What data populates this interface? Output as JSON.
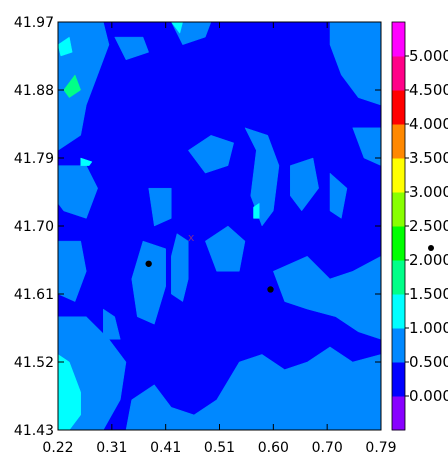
{
  "chart_data": {
    "type": "heatmap",
    "title": "",
    "xlabel": "",
    "ylabel": "",
    "xlim": [
      0.22,
      0.79
    ],
    "ylim": [
      41.43,
      41.97
    ],
    "x_ticks": [
      "0.22",
      "0.31",
      "0.41",
      "0.51",
      "0.60",
      "0.70",
      "0.79"
    ],
    "y_ticks": [
      "41.97",
      "41.88",
      "41.79",
      "41.70",
      "41.61",
      "41.52",
      "41.43"
    ],
    "grid": false,
    "background_color": "#0000ff",
    "colorbar": {
      "levels": [
        "0.000",
        "0.500",
        "1.000",
        "1.500",
        "2.000",
        "2.500",
        "3.000",
        "3.500",
        "4.000",
        "4.500",
        "5.000"
      ],
      "colors": [
        "#8800ff",
        "#0000ff",
        "#0088ff",
        "#00ffff",
        "#00ff88",
        "#00ff00",
        "#88ff00",
        "#ffff00",
        "#ff8800",
        "#ff0000",
        "#ff0088",
        "#ff00ff"
      ]
    },
    "regions": [
      {
        "level": 1.0,
        "color": "#0088ff",
        "polygon": [
          [
            0.22,
            41.97
          ],
          [
            0.3,
            41.97
          ],
          [
            0.31,
            41.94
          ],
          [
            0.29,
            41.9
          ],
          [
            0.27,
            41.86
          ],
          [
            0.26,
            41.82
          ],
          [
            0.22,
            41.8
          ]
        ]
      },
      {
        "level": 1.0,
        "color": "#0088ff",
        "polygon": [
          [
            0.22,
            41.78
          ],
          [
            0.27,
            41.78
          ],
          [
            0.29,
            41.75
          ],
          [
            0.27,
            41.71
          ],
          [
            0.23,
            41.72
          ],
          [
            0.22,
            41.73
          ]
        ]
      },
      {
        "level": 1.0,
        "color": "#0088ff",
        "polygon": [
          [
            0.22,
            41.68
          ],
          [
            0.26,
            41.68
          ],
          [
            0.27,
            41.64
          ],
          [
            0.25,
            41.6
          ],
          [
            0.22,
            41.61
          ]
        ]
      },
      {
        "level": 1.0,
        "color": "#0088ff",
        "polygon": [
          [
            0.22,
            41.58
          ],
          [
            0.27,
            41.58
          ],
          [
            0.31,
            41.55
          ],
          [
            0.34,
            41.52
          ],
          [
            0.33,
            41.47
          ],
          [
            0.3,
            41.43
          ],
          [
            0.22,
            41.43
          ]
        ]
      },
      {
        "level": 1.0,
        "color": "#0088ff",
        "polygon": [
          [
            0.32,
            41.95
          ],
          [
            0.37,
            41.95
          ],
          [
            0.38,
            41.93
          ],
          [
            0.34,
            41.92
          ]
        ]
      },
      {
        "level": 1.0,
        "color": "#0088ff",
        "polygon": [
          [
            0.42,
            41.97
          ],
          [
            0.49,
            41.97
          ],
          [
            0.48,
            41.95
          ],
          [
            0.44,
            41.94
          ]
        ]
      },
      {
        "level": 1.0,
        "color": "#0088ff",
        "polygon": [
          [
            0.45,
            41.8
          ],
          [
            0.49,
            41.82
          ],
          [
            0.53,
            41.81
          ],
          [
            0.52,
            41.78
          ],
          [
            0.48,
            41.77
          ]
        ]
      },
      {
        "level": 1.0,
        "color": "#0088ff",
        "polygon": [
          [
            0.55,
            41.83
          ],
          [
            0.57,
            41.8
          ],
          [
            0.56,
            41.74
          ],
          [
            0.58,
            41.7
          ],
          [
            0.6,
            41.72
          ],
          [
            0.61,
            41.78
          ],
          [
            0.59,
            41.82
          ]
        ]
      },
      {
        "level": 1.0,
        "color": "#0088ff",
        "polygon": [
          [
            0.63,
            41.78
          ],
          [
            0.67,
            41.79
          ],
          [
            0.68,
            41.75
          ],
          [
            0.65,
            41.72
          ],
          [
            0.63,
            41.74
          ]
        ]
      },
      {
        "level": 1.0,
        "color": "#0088ff",
        "polygon": [
          [
            0.7,
            41.77
          ],
          [
            0.73,
            41.75
          ],
          [
            0.72,
            41.71
          ],
          [
            0.7,
            41.72
          ]
        ]
      },
      {
        "level": 1.0,
        "color": "#0088ff",
        "polygon": [
          [
            0.7,
            41.97
          ],
          [
            0.79,
            41.97
          ],
          [
            0.79,
            41.86
          ],
          [
            0.75,
            41.87
          ],
          [
            0.72,
            41.9
          ],
          [
            0.7,
            41.94
          ]
        ]
      },
      {
        "level": 1.0,
        "color": "#0088ff",
        "polygon": [
          [
            0.74,
            41.83
          ],
          [
            0.79,
            41.83
          ],
          [
            0.79,
            41.78
          ],
          [
            0.76,
            41.79
          ]
        ]
      },
      {
        "level": 1.0,
        "color": "#0088ff",
        "polygon": [
          [
            0.37,
            41.68
          ],
          [
            0.41,
            41.67
          ],
          [
            0.41,
            41.62
          ],
          [
            0.39,
            41.57
          ],
          [
            0.36,
            41.58
          ],
          [
            0.35,
            41.63
          ]
        ]
      },
      {
        "level": 1.0,
        "color": "#0088ff",
        "polygon": [
          [
            0.43,
            41.69
          ],
          [
            0.45,
            41.68
          ],
          [
            0.45,
            41.63
          ],
          [
            0.44,
            41.6
          ],
          [
            0.42,
            41.61
          ],
          [
            0.42,
            41.66
          ]
        ]
      },
      {
        "level": 1.0,
        "color": "#0088ff",
        "polygon": [
          [
            0.38,
            41.75
          ],
          [
            0.42,
            41.75
          ],
          [
            0.42,
            41.71
          ],
          [
            0.39,
            41.7
          ]
        ]
      },
      {
        "level": 1.0,
        "color": "#0088ff",
        "polygon": [
          [
            0.48,
            41.68
          ],
          [
            0.52,
            41.7
          ],
          [
            0.55,
            41.68
          ],
          [
            0.54,
            41.64
          ],
          [
            0.5,
            41.64
          ]
        ]
      },
      {
        "level": 1.0,
        "color": "#0088ff",
        "polygon": [
          [
            0.6,
            41.64
          ],
          [
            0.66,
            41.66
          ],
          [
            0.7,
            41.63
          ],
          [
            0.74,
            41.64
          ],
          [
            0.79,
            41.66
          ],
          [
            0.79,
            41.55
          ],
          [
            0.75,
            41.56
          ],
          [
            0.71,
            41.58
          ],
          [
            0.66,
            41.59
          ],
          [
            0.62,
            41.6
          ]
        ]
      },
      {
        "level": 1.0,
        "color": "#0088ff",
        "polygon": [
          [
            0.3,
            41.59
          ],
          [
            0.32,
            41.58
          ],
          [
            0.33,
            41.55
          ],
          [
            0.3,
            41.55
          ]
        ]
      },
      {
        "level": 1.0,
        "color": "#0088ff",
        "polygon": [
          [
            0.34,
            41.43
          ],
          [
            0.35,
            41.47
          ],
          [
            0.39,
            41.49
          ],
          [
            0.42,
            41.46
          ],
          [
            0.46,
            41.45
          ],
          [
            0.5,
            41.47
          ],
          [
            0.54,
            41.52
          ],
          [
            0.58,
            41.53
          ],
          [
            0.62,
            41.51
          ],
          [
            0.66,
            41.52
          ],
          [
            0.7,
            41.54
          ],
          [
            0.74,
            41.52
          ],
          [
            0.79,
            41.53
          ],
          [
            0.79,
            41.43
          ]
        ]
      },
      {
        "level": 1.5,
        "color": "#00ffff",
        "polygon": [
          [
            0.22,
            41.53
          ],
          [
            0.24,
            41.52
          ],
          [
            0.26,
            41.48
          ],
          [
            0.26,
            41.45
          ],
          [
            0.24,
            41.43
          ],
          [
            0.22,
            41.43
          ]
        ]
      },
      {
        "level": 1.5,
        "color": "#00ffff",
        "polygon": [
          [
            0.22,
            41.94
          ],
          [
            0.24,
            41.95
          ],
          [
            0.245,
            41.93
          ],
          [
            0.225,
            41.925
          ]
        ]
      },
      {
        "level": 1.5,
        "color": "#00ffff",
        "polygon": [
          [
            0.42,
            41.97
          ],
          [
            0.44,
            41.97
          ],
          [
            0.435,
            41.955
          ]
        ]
      },
      {
        "level": 1.5,
        "color": "#00ffff",
        "polygon": [
          [
            0.565,
            41.725
          ],
          [
            0.575,
            41.73
          ],
          [
            0.575,
            41.71
          ],
          [
            0.565,
            41.71
          ]
        ]
      },
      {
        "level": 1.5,
        "color": "#00ffff",
        "polygon": [
          [
            0.26,
            41.79
          ],
          [
            0.28,
            41.785
          ],
          [
            0.275,
            41.78
          ],
          [
            0.26,
            41.78
          ]
        ]
      },
      {
        "level": 2.0,
        "color": "#00ff88",
        "polygon": [
          [
            0.23,
            41.88
          ],
          [
            0.25,
            41.9
          ],
          [
            0.26,
            41.88
          ],
          [
            0.24,
            41.87
          ]
        ]
      }
    ],
    "points": [
      {
        "x": 0.38,
        "y": 41.65
      },
      {
        "x": 0.595,
        "y": 41.616
      }
    ],
    "annotations": [
      "x"
    ]
  }
}
